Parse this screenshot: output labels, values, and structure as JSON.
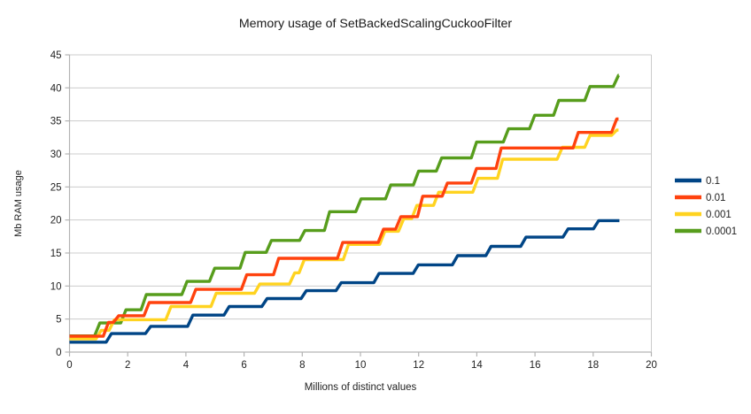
{
  "chart_data": {
    "type": "line",
    "line_style": "stepped",
    "title": "Memory usage of SetBackedScalingCuckooFilter",
    "xlabel": "Millions of distinct values",
    "ylabel": "Mb RAM usage",
    "xlim": [
      0,
      20
    ],
    "ylim": [
      0,
      45
    ],
    "xticks": [
      0,
      2,
      4,
      6,
      8,
      10,
      12,
      14,
      16,
      18,
      20
    ],
    "yticks": [
      0,
      5,
      10,
      15,
      20,
      25,
      30,
      35,
      40,
      45
    ],
    "grid": "horizontal-major",
    "legend_position": "right",
    "series": [
      {
        "name": "0.1",
        "color": "#004586",
        "start_value": 1.5,
        "steps": [
          [
            1.35,
            2.8
          ],
          [
            2.7,
            3.9
          ],
          [
            4.15,
            5.6
          ],
          [
            5.4,
            6.9
          ],
          [
            6.7,
            8.1
          ],
          [
            8.05,
            9.3
          ],
          [
            9.25,
            10.5
          ],
          [
            10.55,
            11.9
          ],
          [
            11.9,
            13.2
          ],
          [
            13.25,
            14.6
          ],
          [
            14.4,
            16.0
          ],
          [
            15.6,
            17.4
          ],
          [
            17.05,
            18.65
          ],
          [
            18.1,
            19.9
          ]
        ],
        "end_x": 18.9
      },
      {
        "name": "0.01",
        "color": "#ff420e",
        "start_value": 2.4,
        "steps": [
          [
            1.25,
            4.5
          ],
          [
            1.6,
            5.5
          ],
          [
            2.65,
            7.5
          ],
          [
            4.25,
            9.5
          ],
          [
            6.0,
            11.7
          ],
          [
            7.1,
            14.2
          ],
          [
            9.3,
            16.6
          ],
          [
            10.7,
            18.6
          ],
          [
            11.3,
            20.5
          ],
          [
            12.05,
            23.6
          ],
          [
            12.9,
            25.6
          ],
          [
            13.9,
            27.8
          ],
          [
            14.75,
            30.9
          ],
          [
            17.4,
            33.25
          ],
          [
            18.72,
            35.3
          ]
        ],
        "end_x": 18.87
      },
      {
        "name": "0.001",
        "color": "#ffd320",
        "start_value": 2.0,
        "steps": [
          [
            1.0,
            3.3
          ],
          [
            1.45,
            4.9
          ],
          [
            3.4,
            6.9
          ],
          [
            4.95,
            8.9
          ],
          [
            6.45,
            10.3
          ],
          [
            7.65,
            12.0
          ],
          [
            7.98,
            14.0
          ],
          [
            9.5,
            16.3
          ],
          [
            10.75,
            18.3
          ],
          [
            11.4,
            20.2
          ],
          [
            11.85,
            22.2
          ],
          [
            12.6,
            24.2
          ],
          [
            13.95,
            26.3
          ],
          [
            14.8,
            29.2
          ],
          [
            16.85,
            31.0
          ],
          [
            17.8,
            32.8
          ],
          [
            18.72,
            33.6
          ]
        ],
        "end_x": 18.87
      },
      {
        "name": "0.0001",
        "color": "#579d1c",
        "start_value": 2.45,
        "steps": [
          [
            0.95,
            4.4
          ],
          [
            1.85,
            6.4
          ],
          [
            2.55,
            8.7
          ],
          [
            3.95,
            10.7
          ],
          [
            4.9,
            12.7
          ],
          [
            5.95,
            15.1
          ],
          [
            6.85,
            16.9
          ],
          [
            8.0,
            18.4
          ],
          [
            8.85,
            21.25
          ],
          [
            9.93,
            23.2
          ],
          [
            10.95,
            25.3
          ],
          [
            11.91,
            27.4
          ],
          [
            12.7,
            29.4
          ],
          [
            13.9,
            31.8
          ],
          [
            15.0,
            33.8
          ],
          [
            15.9,
            35.85
          ],
          [
            16.73,
            38.1
          ],
          [
            17.8,
            40.2
          ],
          [
            18.78,
            41.9
          ]
        ],
        "end_x": 18.88
      }
    ]
  },
  "colors": {
    "background": "#ffffff",
    "grid": "#cccccc",
    "axis": "#b3b3b3",
    "tick_text": "#222222",
    "title_text": "#1a1a1a"
  }
}
